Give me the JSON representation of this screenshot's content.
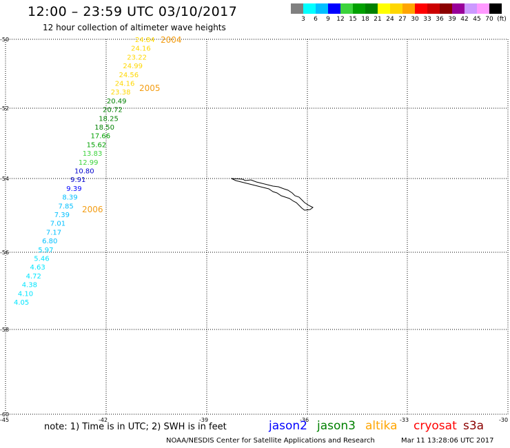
{
  "header": {
    "title": "12:00 – 23:59 UTC 03/10/2017",
    "subtitle": "12 hour collection of altimeter wave heights"
  },
  "scale": {
    "unit": "(ft)",
    "colors": [
      "#808080",
      "#00ffff",
      "#00bfff",
      "#0000ff",
      "#3cd33c",
      "#00a000",
      "#008000",
      "#ffff00",
      "#ffd700",
      "#ffa500",
      "#ff0000",
      "#cc0000",
      "#8b0000",
      "#990099",
      "#cc99ff",
      "#ff99ff",
      "#000000"
    ],
    "labels": [
      "3",
      "6",
      "9",
      "12",
      "15",
      "18",
      "21",
      "24",
      "27",
      "30",
      "33",
      "36",
      "39",
      "42",
      "45",
      "70"
    ]
  },
  "map": {
    "lat_labels": [
      "-50",
      "-52",
      "-54",
      "-56",
      "-58",
      "-60"
    ],
    "lon_labels": [
      "-45",
      "-42",
      "-39",
      "-36",
      "-33",
      "-30"
    ],
    "track_points": [
      {
        "v": "24.84",
        "c": "#ffd700"
      },
      {
        "v": "24.16",
        "c": "#ffd700"
      },
      {
        "v": "23.22",
        "c": "#ffd700"
      },
      {
        "v": "24.99",
        "c": "#ffd700"
      },
      {
        "v": "24.56",
        "c": "#ffd700"
      },
      {
        "v": "24.16",
        "c": "#ffd700"
      },
      {
        "v": "23.38",
        "c": "#ffd700"
      },
      {
        "v": "20.49",
        "c": "#008000"
      },
      {
        "v": "20.72",
        "c": "#008000"
      },
      {
        "v": "18.25",
        "c": "#008000"
      },
      {
        "v": "18.50",
        "c": "#008000"
      },
      {
        "v": "17.66",
        "c": "#00a000"
      },
      {
        "v": "15.62",
        "c": "#00a000"
      },
      {
        "v": "13.83",
        "c": "#3cd33c"
      },
      {
        "v": "12.99",
        "c": "#3cd33c"
      },
      {
        "v": "10.80",
        "c": "#0000cd"
      },
      {
        "v": "9.91",
        "c": "#0000cd"
      },
      {
        "v": "9.39",
        "c": "#0000ff"
      },
      {
        "v": "8.39",
        "c": "#00bfff"
      },
      {
        "v": "7.85",
        "c": "#00bfff"
      },
      {
        "v": "7.39",
        "c": "#00bfff"
      },
      {
        "v": "7.01",
        "c": "#00bfff"
      },
      {
        "v": "7.17",
        "c": "#00bfff"
      },
      {
        "v": "6.80",
        "c": "#00bfff"
      },
      {
        "v": "5.97",
        "c": "#00d5ff"
      },
      {
        "v": "5.46",
        "c": "#00e5ff"
      },
      {
        "v": "4.63",
        "c": "#00e5ff"
      },
      {
        "v": "4.72",
        "c": "#00e5ff"
      },
      {
        "v": "4.38",
        "c": "#00e5ff"
      },
      {
        "v": "4.10",
        "c": "#00e5ff"
      },
      {
        "v": "4.05",
        "c": "#00e5ff"
      }
    ],
    "time_labels": [
      "2004",
      "2005",
      "2006"
    ]
  },
  "footer": {
    "note": "note: 1) Time is in UTC; 2) SWH is in feet",
    "satellites": [
      {
        "name": "jason2",
        "color": "#0000ff"
      },
      {
        "name": "jason3",
        "color": "#008000"
      },
      {
        "name": "altika",
        "color": "#ffa500"
      },
      {
        "name": "cryosat",
        "color": "#ff0000"
      },
      {
        "name": "s3a",
        "color": "#8b0000"
      }
    ],
    "credit": "NOAA/NESDIS Center for Satellite Applications and Research",
    "timestamp": "Mar 11 13:28:06 UTC 2017"
  }
}
